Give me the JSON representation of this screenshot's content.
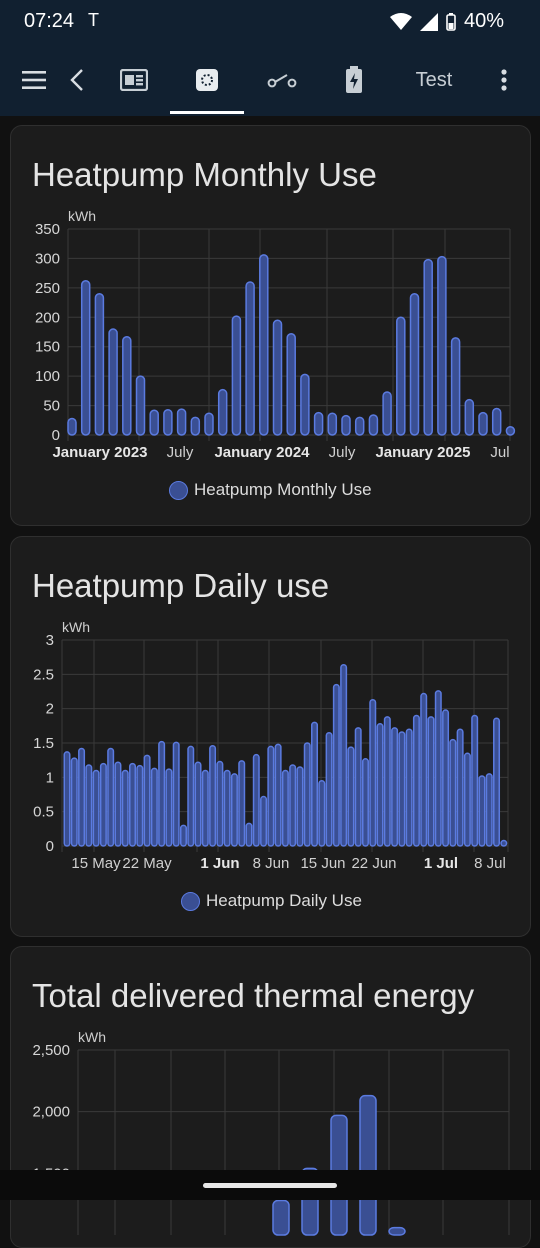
{
  "status": {
    "time": "07:24",
    "battery": "40%"
  },
  "toolbar": {
    "items": [
      {
        "name": "menu-icon"
      },
      {
        "name": "back-icon"
      },
      {
        "name": "overview-icon"
      },
      {
        "name": "energy-icon"
      },
      {
        "name": "switch-icon"
      },
      {
        "name": "battery-charging-icon"
      }
    ],
    "test_label": "Test",
    "more": "more-icon"
  },
  "colors": {
    "bar_fill": "#3a4f93",
    "bar_stroke": "#5b7be0",
    "bg": "#1c1c1c"
  },
  "cards": {
    "monthly_title": "Heatpump Monthly Use",
    "monthly_legend": "Heatpump Monthly Use",
    "daily_title": "Heatpump Daily use",
    "daily_legend": "Heatpump Daily Use",
    "total_title": "Total delivered thermal energy"
  },
  "chart_data": [
    {
      "type": "bar",
      "title": "Heatpump Monthly Use",
      "ylabel": "kWh",
      "ylim": [
        0,
        350
      ],
      "yticks": [
        "0",
        "50",
        "100",
        "150",
        "200",
        "250",
        "300",
        "350"
      ],
      "xtick_labels": [
        "January 2023",
        "July",
        "January 2024",
        "July",
        "January 2025",
        "Jul"
      ],
      "xtick_bold": [
        true,
        false,
        true,
        false,
        true,
        false
      ],
      "series": [
        {
          "name": "Heatpump Monthly Use",
          "values": [
            28,
            262,
            240,
            180,
            167,
            100,
            42,
            43,
            44,
            30,
            37,
            77,
            202,
            260,
            306,
            195,
            172,
            103,
            38,
            37,
            33,
            30,
            34,
            73,
            200,
            240,
            298,
            303,
            165,
            60,
            38,
            45,
            14
          ]
        }
      ],
      "grid": true,
      "legend": "bottom"
    },
    {
      "type": "bar",
      "title": "Heatpump Daily use",
      "ylabel": "kWh",
      "ylim": [
        0,
        3
      ],
      "yticks": [
        "0",
        "0.5",
        "1",
        "1.5",
        "2",
        "2.5",
        "3"
      ],
      "xtick_labels": [
        "15 May",
        "22 May",
        "1 Jun",
        "8 Jun",
        "15 Jun",
        "22 Jun",
        "1 Jul",
        "8 Jul"
      ],
      "xtick_bold": [
        false,
        false,
        true,
        false,
        false,
        false,
        true,
        false
      ],
      "series": [
        {
          "name": "Heatpump Daily Use",
          "values": [
            1.37,
            1.28,
            1.42,
            1.18,
            1.1,
            1.2,
            1.42,
            1.22,
            1.1,
            1.2,
            1.17,
            1.32,
            1.13,
            1.52,
            1.12,
            1.51,
            0.3,
            1.45,
            1.22,
            1.1,
            1.46,
            1.23,
            1.1,
            1.05,
            1.24,
            0.33,
            1.33,
            0.72,
            1.45,
            1.48,
            1.1,
            1.18,
            1.15,
            1.5,
            1.8,
            0.95,
            1.65,
            2.35,
            2.64,
            1.44,
            1.72,
            1.27,
            2.13,
            1.78,
            1.88,
            1.72,
            1.66,
            1.7,
            1.9,
            2.22,
            1.88,
            2.26,
            1.98,
            1.55,
            1.7,
            1.35,
            1.9,
            1.02,
            1.05,
            1.86,
            0.08
          ]
        }
      ],
      "grid": true,
      "legend": "bottom"
    },
    {
      "type": "bar",
      "title": "Total delivered thermal energy",
      "ylabel": "kWh",
      "ylim": [
        1000,
        2500
      ],
      "yticks": [
        "2,500",
        "2,000",
        "1,500"
      ],
      "series": [
        {
          "name": "",
          "values": [
            1280,
            1540,
            1970,
            2130,
            1060
          ]
        }
      ],
      "grid": true
    }
  ]
}
